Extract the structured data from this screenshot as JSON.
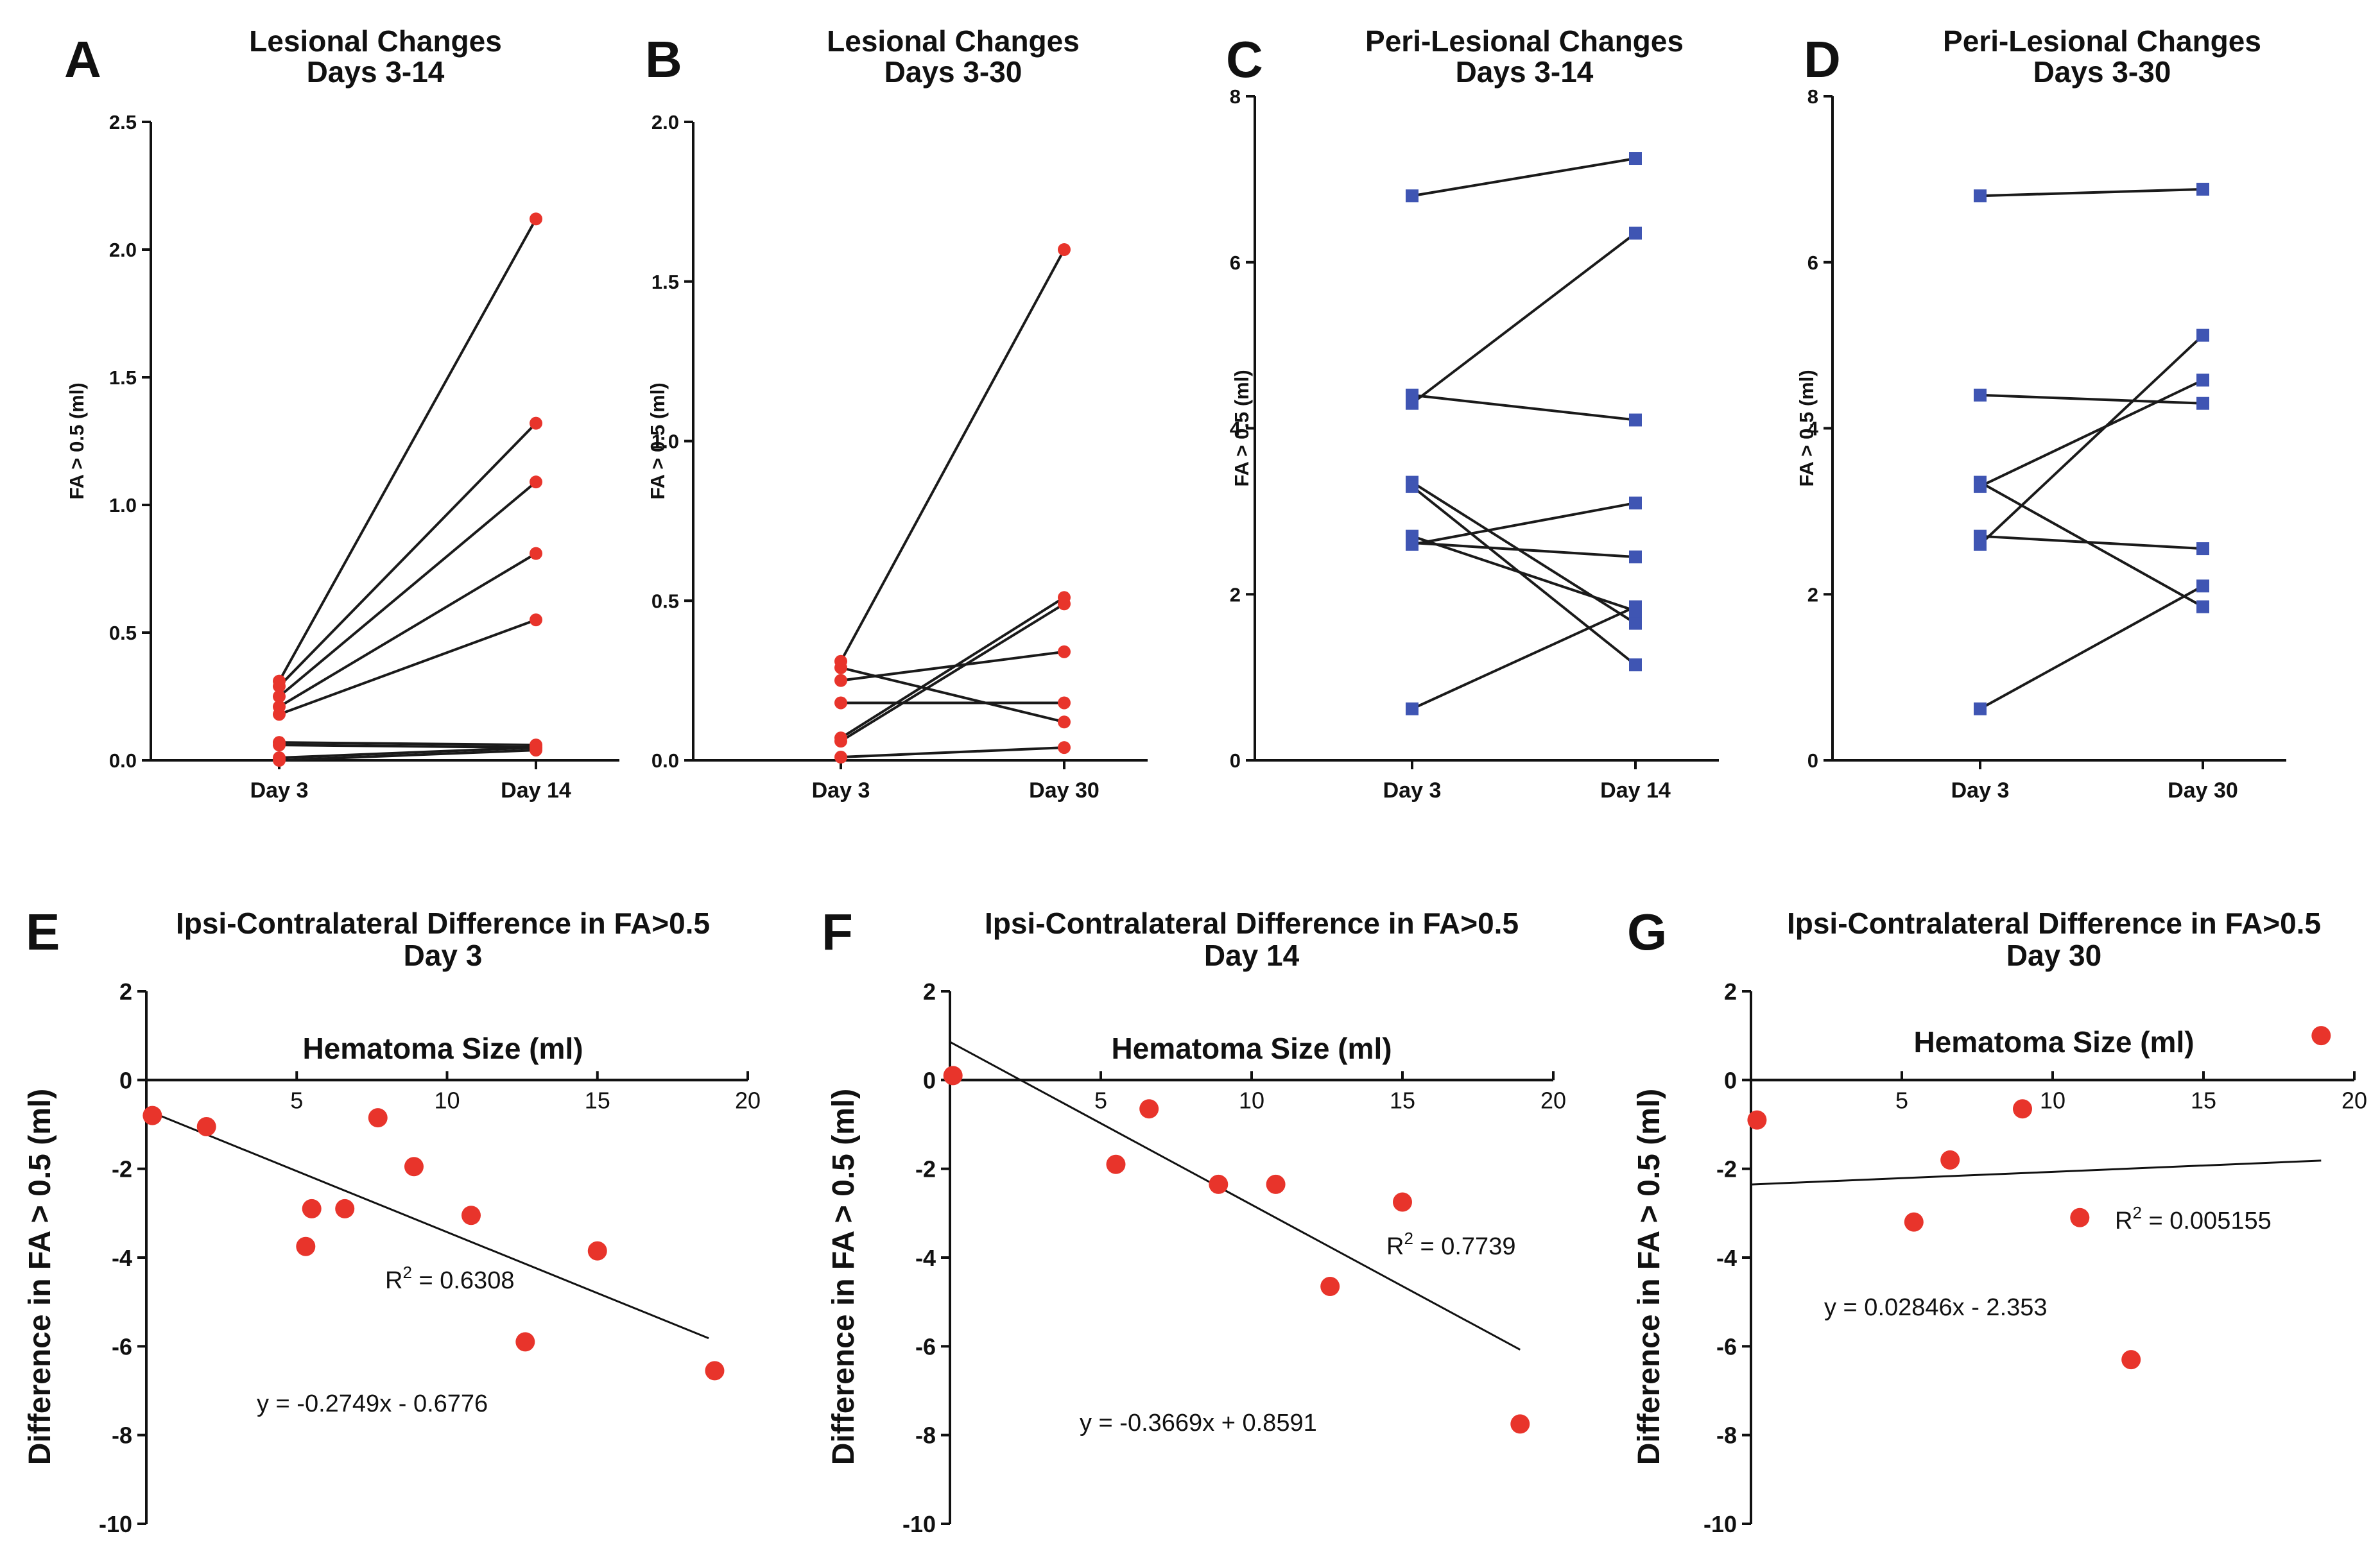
{
  "chart_data": [
    {
      "id": "A",
      "type": "line",
      "panel_label": "A",
      "title": [
        "Lesional Changes",
        "Days 3-14"
      ],
      "ylabel": "FA > 0.5 (ml)",
      "ylim": [
        0,
        2.5
      ],
      "yticks": [
        "0.0",
        "0.5",
        "1.0",
        "1.5",
        "2.0",
        "2.5"
      ],
      "categories": [
        "Day 3",
        "Day 14"
      ],
      "marker": "circle",
      "color": "#e8342b",
      "pairs": [
        [
          0.31,
          2.12
        ],
        [
          0.29,
          1.32
        ],
        [
          0.25,
          1.09
        ],
        [
          0.21,
          0.81
        ],
        [
          0.18,
          0.55
        ],
        [
          0.07,
          0.06
        ],
        [
          0.06,
          0.05
        ],
        [
          0.01,
          0.05
        ],
        [
          0.0,
          0.04
        ]
      ]
    },
    {
      "id": "B",
      "type": "line",
      "panel_label": "B",
      "title": [
        "Lesional Changes",
        "Days 3-30"
      ],
      "ylabel": "FA > 0.5 (ml)",
      "ylim": [
        0,
        2.0
      ],
      "yticks": [
        "0.0",
        "0.5",
        "1.0",
        "1.5",
        "2.0"
      ],
      "categories": [
        "Day 3",
        "Day 30"
      ],
      "marker": "circle",
      "color": "#e8342b",
      "pairs": [
        [
          0.31,
          1.6
        ],
        [
          0.29,
          0.12
        ],
        [
          0.25,
          0.34
        ],
        [
          0.18,
          0.18
        ],
        [
          0.07,
          0.51
        ],
        [
          0.06,
          0.49
        ],
        [
          0.01,
          0.04
        ]
      ]
    },
    {
      "id": "C",
      "type": "line",
      "panel_label": "C",
      "title": [
        "Peri-Lesional Changes",
        "Days 3-14"
      ],
      "ylabel": "FA > 0.5 (ml)",
      "ylim": [
        0,
        8
      ],
      "yticks": [
        "0",
        "2",
        "4",
        "6",
        "8"
      ],
      "categories": [
        "Day 3",
        "Day 14"
      ],
      "marker": "square",
      "color": "#3f55b3",
      "pairs": [
        [
          6.8,
          7.25
        ],
        [
          4.4,
          4.1
        ],
        [
          4.3,
          6.35
        ],
        [
          3.35,
          1.65
        ],
        [
          3.3,
          1.15
        ],
        [
          2.7,
          1.8
        ],
        [
          2.6,
          3.1
        ],
        [
          2.62,
          2.45
        ],
        [
          0.62,
          1.85
        ]
      ]
    },
    {
      "id": "D",
      "type": "line",
      "panel_label": "D",
      "title": [
        "Peri-Lesional Changes",
        "Days 3-30"
      ],
      "ylabel": "FA > 0.5 (ml)",
      "ylim": [
        0,
        8
      ],
      "yticks": [
        "0",
        "2",
        "4",
        "6",
        "8"
      ],
      "categories": [
        "Day 3",
        "Day 30"
      ],
      "marker": "square",
      "color": "#3f55b3",
      "pairs": [
        [
          6.8,
          6.88
        ],
        [
          4.4,
          4.3
        ],
        [
          3.35,
          1.85
        ],
        [
          3.3,
          4.58
        ],
        [
          2.7,
          2.55
        ],
        [
          2.6,
          5.12
        ],
        [
          0.62,
          2.1
        ]
      ]
    },
    {
      "id": "E",
      "type": "scatter",
      "panel_label": "E",
      "title": [
        "Ipsi-Contralateral Difference in FA>0.5",
        "Day 3"
      ],
      "xlabel": "Hematoma Size (ml)",
      "ylabel": "Difference in FA > 0.5 (ml)",
      "xlim": [
        0,
        20
      ],
      "ylim": [
        -10,
        2
      ],
      "xticks": [
        "5",
        "10",
        "15",
        "20"
      ],
      "yticks": [
        "2",
        "0",
        "-2",
        "-4",
        "-6",
        "-8",
        "-10"
      ],
      "color": "#e8342b",
      "points": [
        [
          0.2,
          -0.8
        ],
        [
          2.0,
          -1.05
        ],
        [
          5.3,
          -3.75
        ],
        [
          5.5,
          -2.9
        ],
        [
          6.6,
          -2.9
        ],
        [
          7.7,
          -0.85
        ],
        [
          8.9,
          -1.95
        ],
        [
          10.8,
          -3.05
        ],
        [
          12.6,
          -5.9
        ],
        [
          15.0,
          -3.85
        ],
        [
          18.9,
          -6.55
        ]
      ],
      "fit": {
        "slope": -0.2749,
        "intercept": -0.6776,
        "x_range": [
          0.2,
          18.7
        ]
      },
      "r2_text": "0.6308",
      "eq_text": "y = -0.2749x - 0.6776"
    },
    {
      "id": "F",
      "type": "scatter",
      "panel_label": "F",
      "title": [
        "Ipsi-Contralateral Difference in FA>0.5",
        "Day 14"
      ],
      "xlabel": "Hematoma Size (ml)",
      "ylabel": "Difference in FA > 0.5 (ml)",
      "xlim": [
        0,
        20
      ],
      "ylim": [
        -10,
        2
      ],
      "xticks": [
        "5",
        "10",
        "15",
        "20"
      ],
      "yticks": [
        "2",
        "0",
        "-2",
        "-4",
        "-6",
        "-8",
        "-10"
      ],
      "color": "#e8342b",
      "points": [
        [
          0.1,
          0.1
        ],
        [
          5.5,
          -1.9
        ],
        [
          6.6,
          -0.65
        ],
        [
          8.9,
          -2.35
        ],
        [
          10.8,
          -2.35
        ],
        [
          12.6,
          -4.65
        ],
        [
          15.0,
          -2.75
        ],
        [
          18.9,
          -7.75
        ]
      ],
      "fit": {
        "slope": -0.3669,
        "intercept": 0.8591,
        "x_range": [
          0.0,
          18.9
        ]
      },
      "r2_text": "0.7739",
      "eq_text": "y = -0.3669x + 0.8591"
    },
    {
      "id": "G",
      "type": "scatter",
      "panel_label": "G",
      "title": [
        "Ipsi-Contralateral Difference in FA>0.5",
        "Day 30"
      ],
      "xlabel": "Hematoma Size (ml)",
      "ylabel": "Difference in FA > 0.5 (ml)",
      "xlim": [
        0,
        20
      ],
      "ylim": [
        -10,
        2
      ],
      "xticks": [
        "5",
        "10",
        "15",
        "20"
      ],
      "yticks": [
        "2",
        "0",
        "-2",
        "-4",
        "-6",
        "-8",
        "-10"
      ],
      "color": "#e8342b",
      "points": [
        [
          0.2,
          -0.9
        ],
        [
          5.4,
          -3.2
        ],
        [
          6.6,
          -1.8
        ],
        [
          9.0,
          -0.65
        ],
        [
          10.9,
          -3.1
        ],
        [
          12.6,
          -6.3
        ],
        [
          18.9,
          1.0
        ]
      ],
      "fit": {
        "slope": 0.02846,
        "intercept": -2.353,
        "x_range": [
          0.0,
          18.9
        ]
      },
      "r2_text": "0.005155",
      "eq_text": "y = 0.02846x - 2.353"
    }
  ]
}
